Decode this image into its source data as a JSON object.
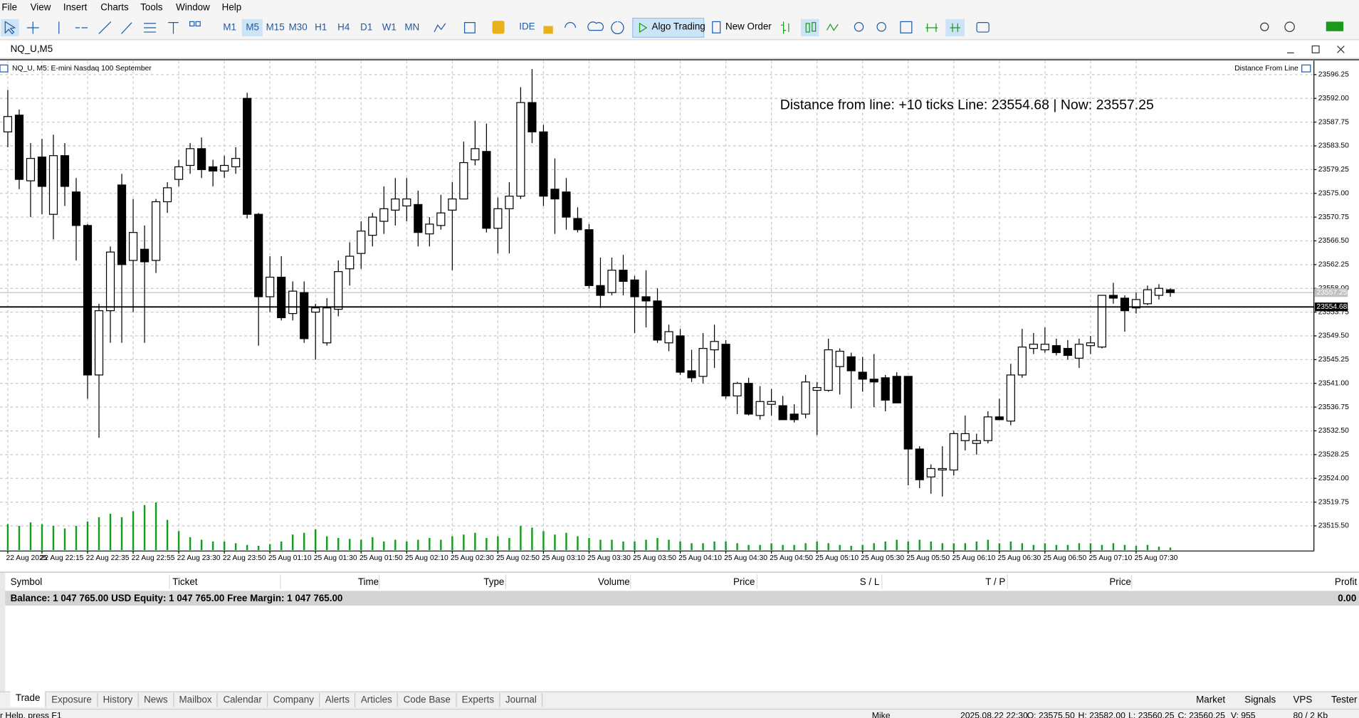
{
  "menu": [
    "File",
    "View",
    "Insert",
    "Charts",
    "Tools",
    "Window",
    "Help"
  ],
  "toolbar": {
    "timeframes": [
      "M1",
      "M5",
      "M15",
      "M30",
      "H1",
      "H4",
      "D1",
      "W1",
      "MN"
    ],
    "active_timeframe": "M5",
    "ide": "IDE",
    "algo_trading": "Algo Trading",
    "new_order": "New Order"
  },
  "window_title": "NQ_U,M5",
  "chart_data": {
    "type": "candlestick",
    "title": "NQ_U, M5:  E-mini Nasdaq 100 September",
    "indicator": "Distance From Line",
    "annotation": "Distance from line: +10 ticks Line: 23554.68 | Now: 23557.25",
    "hline": 23554.68,
    "current_price": 23557.25,
    "categories": [
      "22 Aug 2025",
      null,
      null,
      "22 Aug 22:15",
      null,
      null,
      null,
      "22 Aug 22:35",
      null,
      null,
      null,
      "22 Aug 22:55",
      null,
      null,
      null,
      "22 Aug 23:30",
      null,
      null,
      null,
      "22 Aug 23:50",
      null,
      null,
      null,
      "25 Aug 01:10",
      null,
      null,
      null,
      "25 Aug 01:30",
      null,
      null,
      null,
      "25 Aug 01:50",
      null,
      null,
      null,
      "25 Aug 02:10",
      null,
      null,
      null,
      "25 Aug 02:30",
      null,
      null,
      null,
      "25 Aug 02:50",
      null,
      null,
      null,
      "25 Aug 03:10",
      null,
      null,
      null,
      "25 Aug 03:30",
      null,
      null,
      null,
      "25 Aug 03:50",
      null,
      null,
      null,
      "25 Aug 04:10",
      null,
      null,
      null,
      "25 Aug 04:30",
      null,
      null,
      null,
      "25 Aug 04:50",
      null,
      null,
      null,
      "25 Aug 05:10",
      null,
      null,
      null,
      "25 Aug 05:30",
      null,
      null,
      null,
      "25 Aug 05:50",
      null,
      null,
      null,
      "25 Aug 06:10",
      null,
      null,
      null,
      "25 Aug 06:30",
      null,
      null,
      null,
      "25 Aug 06:50",
      null,
      null,
      null,
      "25 Aug 07:10",
      null,
      null,
      null,
      "25 Aug 07:30",
      null,
      null,
      null
    ],
    "open": [
      23586.0,
      23589.0,
      23577.25,
      23581.5,
      23571.25,
      23581.75,
      23575.25,
      23569.25,
      23542.5,
      23554.0,
      23576.5,
      23563.0,
      23565.0,
      23563.0,
      23573.5,
      23577.5,
      23580.0,
      23583.0,
      23579.75,
      23579.0,
      23579.75,
      23592.0,
      23571.25,
      23556.5,
      23560.0,
      23553.5,
      23557.25,
      23553.75,
      23548.25,
      23554.25,
      23561.5,
      23564.25,
      23567.5,
      23570.0,
      23572.0,
      23572.75,
      23573.0,
      23567.75,
      23569.25,
      23572.0,
      23574.0,
      23581.0,
      23582.5,
      23568.75,
      23572.25,
      23574.5,
      23591.25,
      23586.0,
      23575.75,
      23575.25,
      23570.5,
      23568.5,
      23558.5,
      23557.25,
      23561.25,
      23559.5,
      23556.5,
      23555.75,
      23548.25,
      23549.5,
      23543.25,
      23542.25,
      23547.0,
      23548.0,
      23538.75,
      23541.0,
      23535.25,
      23537.25,
      23537.0,
      23535.5,
      23535.5,
      23539.75,
      23539.75,
      23544.0,
      23545.75,
      23543.0,
      23541.75,
      23542.0,
      23542.25,
      23542.25,
      23529.25,
      23524.25,
      23525.5,
      23525.5,
      23530.75,
      23530.25,
      23530.75,
      23535.0,
      23534.25,
      23542.5,
      23547.25,
      23547.0,
      23547.75,
      23547.25,
      23545.5,
      23547.75,
      23547.5,
      23556.75,
      23556.25,
      23554.5,
      23555.25,
      23556.75,
      23557.75
    ],
    "high": [
      23593.5,
      23590.0,
      23584.0,
      23584.75,
      23585.5,
      23584.0,
      23577.75,
      23569.5,
      23555.25,
      23565.5,
      23578.5,
      23574.0,
      23569.25,
      23574.0,
      23577.0,
      23581.0,
      23584.0,
      23585.0,
      23581.0,
      23581.75,
      23583.25,
      23593.0,
      23571.5,
      23563.75,
      23563.75,
      23559.25,
      23559.25,
      23555.25,
      23556.25,
      23563.0,
      23566.25,
      23570.0,
      23571.5,
      23576.25,
      23577.75,
      23577.75,
      23575.5,
      23570.75,
      23574.75,
      23577.0,
      23584.25,
      23588.0,
      23587.5,
      23574.25,
      23577.0,
      23594.0,
      23597.25,
      23587.25,
      23581.25,
      23577.75,
      23572.5,
      23569.5,
      23563.5,
      23563.5,
      23564.0,
      23560.25,
      23561.25,
      23558.0,
      23551.5,
      23550.75,
      23547.0,
      23550.0,
      23551.5,
      23548.75,
      23541.25,
      23542.0,
      23540.5,
      23540.0,
      23538.75,
      23537.25,
      23542.5,
      23541.25,
      23549.0,
      23547.25,
      23546.5,
      23545.75,
      23546.25,
      23542.5,
      23543.0,
      23542.25,
      23529.75,
      23526.5,
      23529.75,
      23532.5,
      23535.25,
      23532.0,
      23536.0,
      23538.25,
      23544.5,
      23550.75,
      23550.0,
      23551.0,
      23549.0,
      23548.75,
      23549.0,
      23549.5,
      23556.75,
      23559.0,
      23556.75,
      23557.25,
      23558.5,
      23558.75,
      23558.0
    ],
    "low": [
      23583.25,
      23575.75,
      23570.75,
      23571.25,
      23566.75,
      23572.75,
      23563.0,
      23538.25,
      23531.25,
      23548.25,
      23548.25,
      23553.75,
      23548.25,
      23560.75,
      23571.5,
      23576.25,
      23578.5,
      23577.75,
      23576.25,
      23577.75,
      23578.5,
      23570.5,
      23547.75,
      23553.75,
      23552.25,
      23552.25,
      23548.25,
      23545.25,
      23547.75,
      23553.0,
      23558.5,
      23561.5,
      23565.5,
      23567.75,
      23569.25,
      23570.0,
      23565.5,
      23565.5,
      23568.5,
      23561.25,
      23574.0,
      23580.0,
      23568.0,
      23564.25,
      23564.25,
      23574.0,
      23584.0,
      23572.75,
      23567.75,
      23568.5,
      23568.0,
      23558.0,
      23554.5,
      23556.75,
      23556.75,
      23550.0,
      23551.0,
      23548.25,
      23546.75,
      23542.5,
      23541.25,
      23541.0,
      23543.75,
      23538.25,
      23535.5,
      23535.25,
      23534.5,
      23535.25,
      23534.5,
      23534.0,
      23534.75,
      23531.75,
      23539.5,
      23539.0,
      23536.5,
      23539.5,
      23536.75,
      23536.0,
      23537.5,
      23522.75,
      23522.25,
      23521.25,
      23520.75,
      23524.5,
      23529.0,
      23528.25,
      23530.25,
      23534.5,
      23533.5,
      23542.0,
      23546.25,
      23546.5,
      23546.0,
      23545.25,
      23543.75,
      23546.25,
      23547.25,
      23555.25,
      23550.25,
      23553.5,
      23555.0,
      23556.0,
      23556.5
    ],
    "close": [
      23588.75,
      23577.5,
      23581.25,
      23576.25,
      23581.75,
      23576.25,
      23569.25,
      23542.5,
      23554.0,
      23564.5,
      23562.25,
      23568.0,
      23562.75,
      23573.5,
      23576.0,
      23579.75,
      23583.0,
      23579.25,
      23579.0,
      23580.0,
      23581.25,
      23571.25,
      23556.5,
      23560.0,
      23552.75,
      23557.5,
      23549.0,
      23554.5,
      23554.5,
      23561.0,
      23563.75,
      23568.25,
      23570.75,
      23572.25,
      23574.0,
      23574.0,
      23568.0,
      23569.5,
      23571.5,
      23574.0,
      23580.5,
      23583.0,
      23568.75,
      23572.25,
      23574.5,
      23591.25,
      23586.0,
      23574.5,
      23574.0,
      23570.75,
      23568.5,
      23558.5,
      23556.75,
      23561.25,
      23559.25,
      23556.5,
      23555.75,
      23548.75,
      23550.25,
      23543.0,
      23542.0,
      23547.25,
      23548.5,
      23538.75,
      23541.0,
      23535.5,
      23537.75,
      23537.75,
      23534.5,
      23534.5,
      23541.25,
      23540.25,
      23547.0,
      23546.75,
      23543.25,
      23541.75,
      23541.25,
      23538.0,
      23537.5,
      23529.25,
      23523.75,
      23525.75,
      23525.75,
      23532.0,
      23532.0,
      23530.75,
      23535.0,
      23534.5,
      23542.5,
      23547.5,
      23548.0,
      23548.0,
      23546.5,
      23546.0,
      23548.0,
      23548.25,
      23556.75,
      23556.25,
      23554.0,
      23556.0,
      23557.75,
      23558.0,
      23557.25
    ],
    "volume": [
      30,
      28,
      32,
      30,
      28,
      25,
      28,
      33,
      38,
      42,
      38,
      45,
      52,
      55,
      35,
      22,
      15,
      12,
      10,
      10,
      8,
      6,
      5,
      7,
      10,
      18,
      20,
      24,
      16,
      14,
      13,
      12,
      15,
      10,
      12,
      10,
      12,
      14,
      12,
      16,
      18,
      20,
      14,
      16,
      14,
      28,
      26,
      22,
      18,
      20,
      16,
      14,
      12,
      12,
      10,
      10,
      12,
      14,
      12,
      10,
      8,
      8,
      10,
      10,
      8,
      6,
      6,
      8,
      6,
      6,
      8,
      10,
      8,
      6,
      5,
      6,
      8,
      10,
      12,
      10,
      12,
      10,
      8,
      8,
      8,
      10,
      12,
      8,
      10,
      8,
      6,
      8,
      6,
      6,
      8,
      8,
      6,
      8,
      6,
      5,
      6,
      4,
      3
    ],
    "vlim": [
      0,
      60
    ],
    "volume_color": "#1a9a1a",
    "ylim": [
      23511.0,
      23598.75
    ],
    "yticks": [
      23596.25,
      {
        "value": 23592,
        "label": "23592.00"
      },
      23587.75,
      {
        "value": 23583.5,
        "label": "23583.50"
      },
      23579.25,
      {
        "value": 23575,
        "label": "23575.00"
      },
      23570.75,
      {
        "value": 23566.5,
        "label": "23566.50"
      },
      23562.25,
      {
        "value": 23558,
        "label": "23558.00"
      },
      23553.75,
      {
        "value": 23549.5,
        "label": "23549.50"
      },
      23545.25,
      {
        "value": 23541,
        "label": "23541.00"
      },
      23536.75,
      {
        "value": 23532.5,
        "label": "23532.50"
      },
      23528.25,
      {
        "value": 23524,
        "label": "23524.00"
      },
      23519.75,
      {
        "value": 23515.5,
        "label": "23515.50"
      }
    ],
    "grid": true
  },
  "toolbox": {
    "columns": [
      "Symbol",
      "Ticket",
      "Time",
      "Type",
      "Volume",
      "Price",
      "S / L",
      "T / P",
      "Price",
      "Profit"
    ],
    "rows": [
      [
        "Balance: 1 047 765.00 USD  Equity: 1 047 765.00  Free Margin: 1 047 765.00",
        "0.00"
      ]
    ],
    "tabs": [
      "Trade",
      "Exposure",
      "History",
      "News",
      "Mailbox",
      "Calendar",
      "Company",
      "Alerts",
      "Articles",
      "Code Base",
      "Experts",
      "Journal"
    ],
    "right_tabs": [
      "Market",
      "Signals",
      "VPS",
      "Tester"
    ]
  },
  "status": [
    "r Help, press F1",
    "Mike",
    "2025.08.22 22:30",
    "O: 23575.50",
    "H: 23582.00",
    "L: 23560.25",
    "C: 23560.25",
    "V: 955",
    "80 / 2 Kb"
  ]
}
